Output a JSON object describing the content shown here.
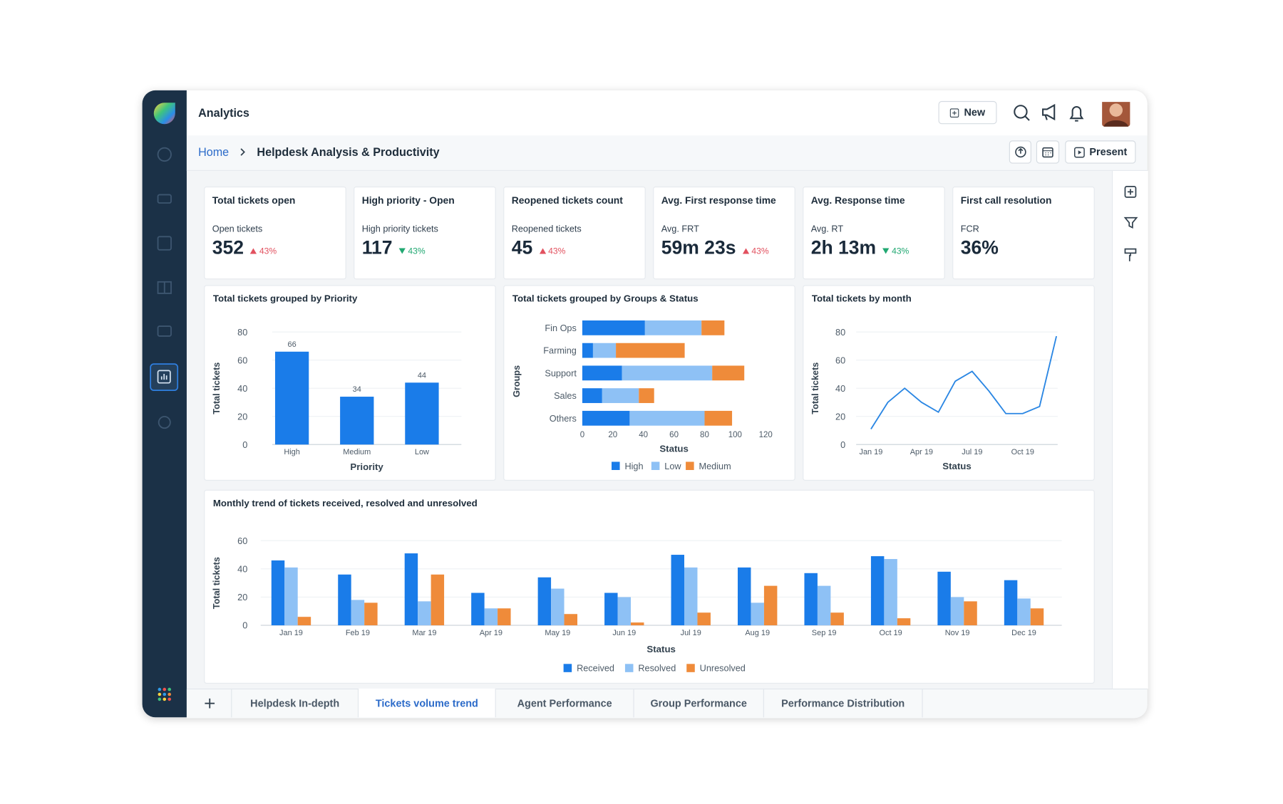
{
  "app": {
    "title": "Analytics",
    "new_button": "New",
    "present_button": "Present"
  },
  "breadcrumb": {
    "home": "Home",
    "current": "Helpdesk Analysis & Productivity"
  },
  "kpis": [
    {
      "title": "Total tickets open",
      "label": "Open tickets",
      "value": "352",
      "change": "43%",
      "trend": "up"
    },
    {
      "title": "High priority - Open",
      "label": "High priority tickets",
      "value": "117",
      "change": "43%",
      "trend": "down"
    },
    {
      "title": "Reopened tickets count",
      "label": "Reopened tickets",
      "value": "45",
      "change": "43%",
      "trend": "up"
    },
    {
      "title": "Avg. First response time",
      "label": "Avg. FRT",
      "value": "59m 23s",
      "change": "43%",
      "trend": "up"
    },
    {
      "title": "Avg. Response time",
      "label": "Avg. RT",
      "value": "2h 13m",
      "change": "43%",
      "trend": "down"
    },
    {
      "title": "First call resolution",
      "label": "FCR",
      "value": "36%"
    }
  ],
  "chart_data": [
    {
      "type": "bar",
      "title": "Total tickets grouped by Priority",
      "x_label": "Priority",
      "y_label": "Total tickets",
      "categories": [
        "High",
        "Medium",
        "Low"
      ],
      "values": [
        66,
        34,
        44
      ],
      "color": "#1a7ce9",
      "ylim": [
        0,
        80
      ],
      "yticks": [
        0,
        20,
        40,
        60,
        80
      ],
      "grid": true,
      "value_labels_shown": true
    },
    {
      "type": "stacked_hbar",
      "title": "Total tickets grouped by Groups & Status",
      "x_label": "Status",
      "y_label": "Groups",
      "categories": [
        "Fin Ops",
        "Farming",
        "Support",
        "Sales",
        "Others"
      ],
      "series": [
        {
          "name": "High",
          "color": "#1a7ce9",
          "values": [
            41,
            7,
            26,
            13,
            31
          ]
        },
        {
          "name": "Low",
          "color": "#8ec1f5",
          "values": [
            37,
            15,
            59,
            24,
            49
          ]
        },
        {
          "name": "Medium",
          "color": "#ef8b3a",
          "values": [
            15,
            45,
            21,
            10,
            18
          ]
        }
      ],
      "xlim": [
        0,
        120
      ],
      "xticks": [
        0,
        20,
        40,
        60,
        80,
        100,
        120
      ],
      "grid": false,
      "legend": "bottom"
    },
    {
      "type": "line",
      "title": "Total tickets by month",
      "x_label": "Status",
      "y_label": "Total tickets",
      "categories": [
        "Jan 19",
        null,
        null,
        "Apr 19",
        null,
        null,
        "Jul 19",
        null,
        null,
        "Oct 19",
        null,
        null
      ],
      "values": [
        11,
        30,
        40,
        30,
        23,
        45,
        52,
        38,
        22,
        22,
        27,
        77
      ],
      "color": "#2a86e3",
      "ylim": [
        0,
        80
      ],
      "yticks": [
        0,
        20,
        40,
        60,
        80
      ],
      "grid": true
    },
    {
      "type": "grouped_bar",
      "title": "Monthly trend of tickets received, resolved and unresolved",
      "x_label": "Status",
      "y_label": "Total tickets",
      "categories": [
        "Jan 19",
        "Feb 19",
        "Mar 19",
        "Apr 19",
        "May 19",
        "Jun 19",
        "Jul 19",
        "Aug 19",
        "Sep 19",
        "Oct 19",
        "Nov 19",
        "Dec 19"
      ],
      "series": [
        {
          "name": "Received",
          "color": "#1a7ce9",
          "values": [
            46,
            36,
            51,
            23,
            34,
            23,
            50,
            41,
            37,
            49,
            38,
            32
          ]
        },
        {
          "name": "Resolved",
          "color": "#8ec1f5",
          "values": [
            41,
            18,
            17,
            12,
            26,
            20,
            41,
            16,
            28,
            47,
            20,
            19
          ]
        },
        {
          "name": "Unresolved",
          "color": "#ef8b3a",
          "values": [
            6,
            16,
            36,
            12,
            8,
            2,
            9,
            28,
            9,
            5,
            17,
            12
          ]
        }
      ],
      "ylim": [
        0,
        60
      ],
      "yticks": [
        0,
        20,
        40,
        60
      ],
      "grid": true,
      "legend": "bottom"
    }
  ],
  "tabs": {
    "items": [
      "Helpdesk In-depth",
      "Tickets volume trend",
      "Agent Performance",
      "Group Performance",
      "Performance Distribution"
    ],
    "active": 1
  }
}
